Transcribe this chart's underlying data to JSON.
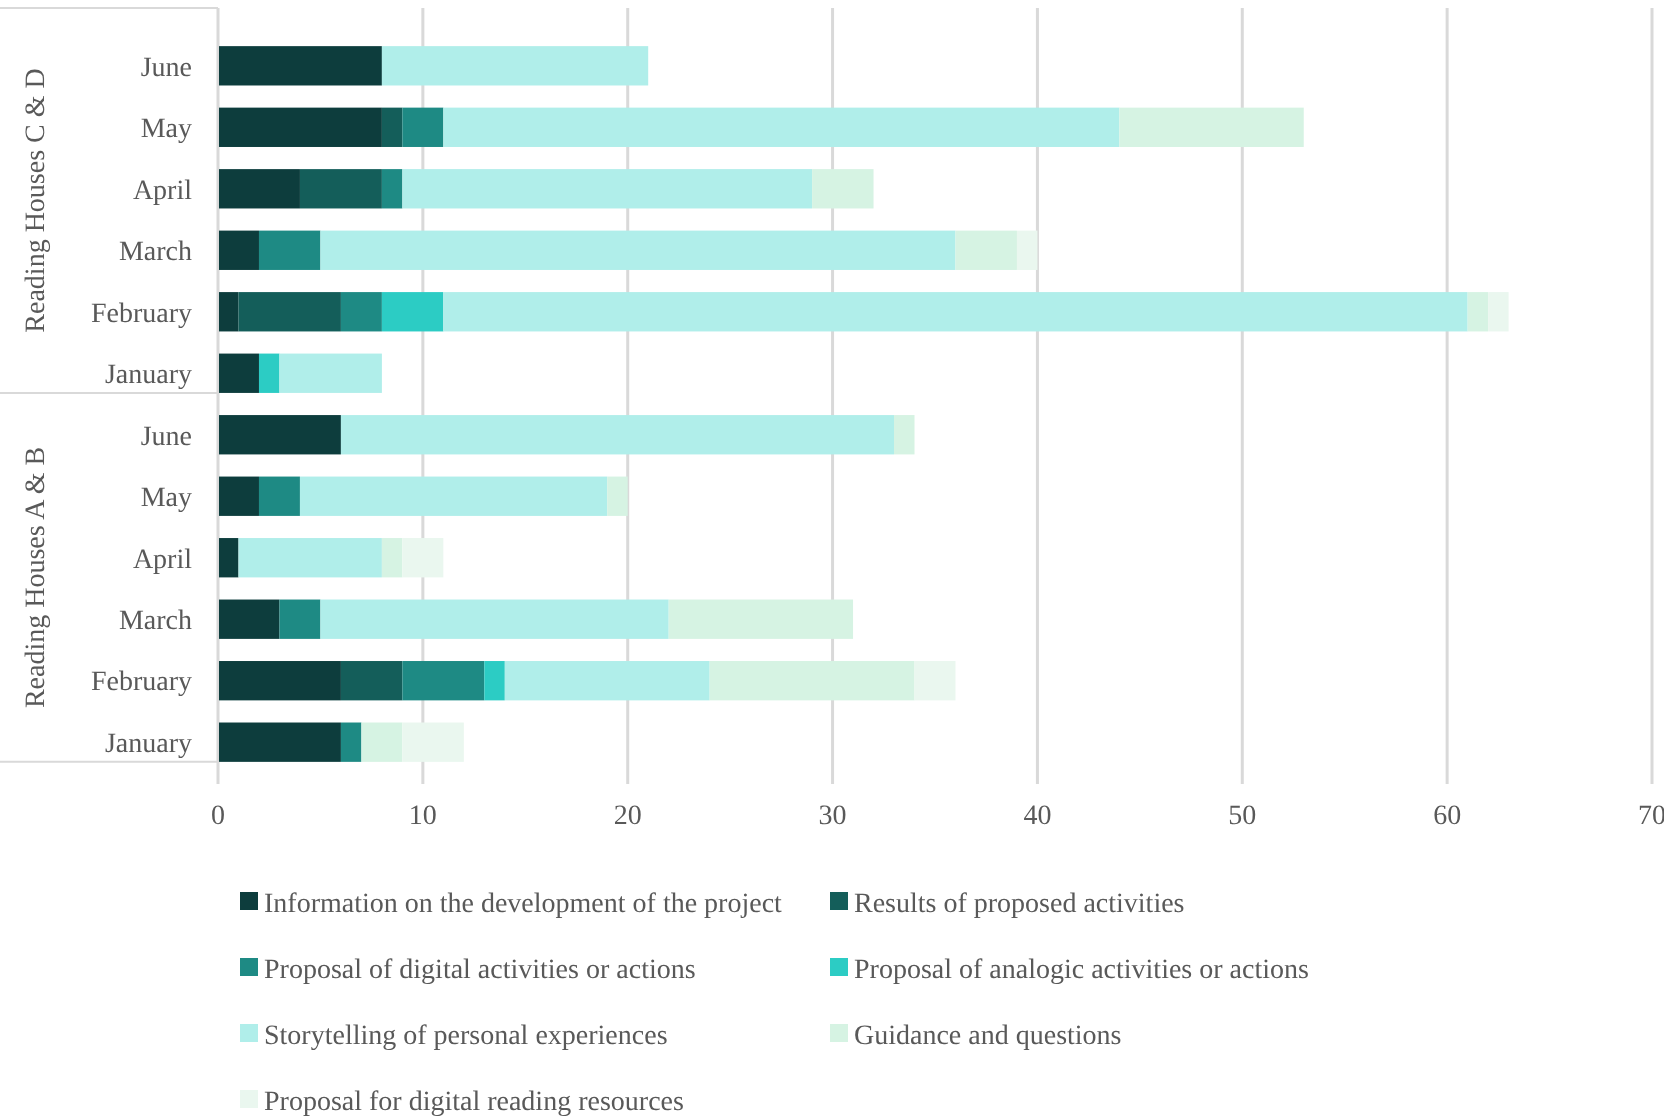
{
  "chart_data": {
    "type": "bar",
    "orientation": "horizontal",
    "stacked": true,
    "categories": [
      "June",
      "May",
      "April",
      "March",
      "February",
      "January",
      "June",
      "May",
      "April",
      "March",
      "February",
      "January"
    ],
    "annotations": [
      "Reading Houses C & D",
      "Reading Houses A & B"
    ],
    "series": [
      {
        "name": "Information on the development of the project",
        "color": "#0d3d3d",
        "values": [
          8,
          8,
          4,
          2,
          1,
          2,
          6,
          2,
          1,
          3,
          6,
          6
        ]
      },
      {
        "name": "Results of proposed activities",
        "color": "#145e5a",
        "values": [
          0,
          1,
          4,
          0,
          5,
          0,
          0,
          0,
          0,
          0,
          3,
          0
        ]
      },
      {
        "name": "Proposal of digital activities or actions",
        "color": "#1e8a84",
        "values": [
          0,
          2,
          1,
          3,
          2,
          0,
          0,
          2,
          0,
          2,
          4,
          1
        ]
      },
      {
        "name": "Proposal of analogic activities or actions",
        "color": "#2cccc4",
        "values": [
          0,
          0,
          0,
          0,
          3,
          1,
          0,
          0,
          0,
          0,
          1,
          0
        ]
      },
      {
        "name": "Storytelling of personal experiences",
        "color": "#b0eeea",
        "values": [
          13,
          33,
          20,
          31,
          50,
          5,
          27,
          15,
          7,
          17,
          10,
          0
        ]
      },
      {
        "name": "Guidance and questions",
        "color": "#d6f3e3",
        "values": [
          0,
          9,
          3,
          3,
          1,
          0,
          1,
          1,
          1,
          9,
          10,
          2
        ]
      },
      {
        "name": "Proposal for digital reading resources",
        "color": "#eaf7ef",
        "values": [
          0,
          0,
          0,
          1,
          1,
          0,
          0,
          0,
          2,
          0,
          2,
          3
        ]
      }
    ],
    "xlim": [
      0,
      70
    ],
    "xticks": [
      0,
      10,
      20,
      30,
      40,
      50,
      60,
      70
    ],
    "grid": "x",
    "legend": "bottom"
  }
}
